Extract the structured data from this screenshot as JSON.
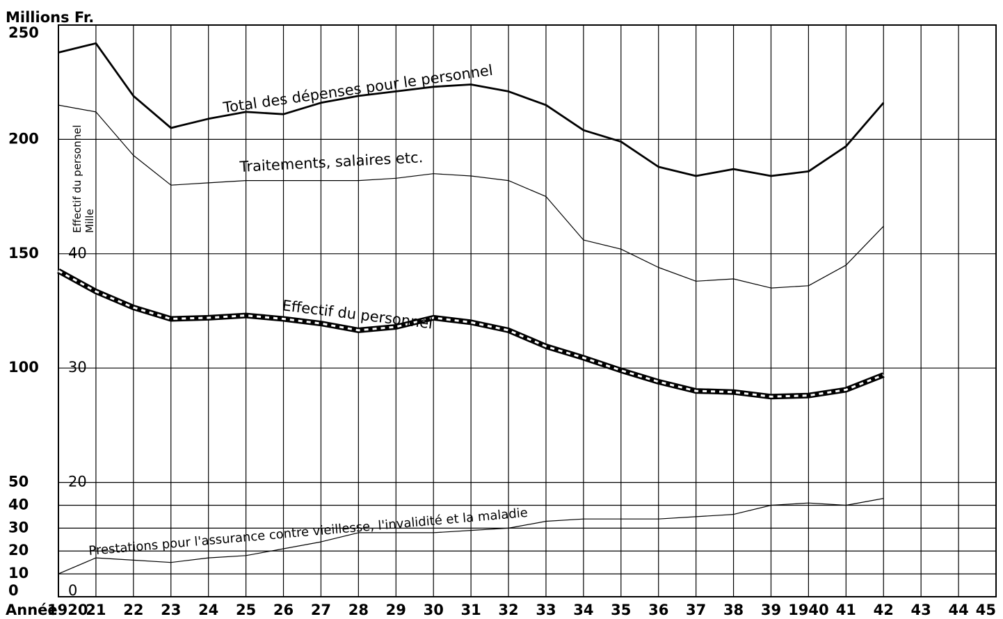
{
  "chart_data": {
    "type": "line",
    "y_unit_label": "Millions Fr.",
    "y2_label_line1": "Effectif du personnel",
    "y2_label_line2": "Mille",
    "x_prefix": "Année",
    "x_tick_labels": [
      "1920",
      "21",
      "22",
      "23",
      "24",
      "25",
      "26",
      "27",
      "28",
      "29",
      "30",
      "31",
      "32",
      "33",
      "34",
      "35",
      "36",
      "37",
      "38",
      "39",
      "1940",
      "41",
      "42",
      "43",
      "44",
      "45"
    ],
    "x": [
      1920,
      1921,
      1922,
      1923,
      1924,
      1925,
      1926,
      1927,
      1928,
      1929,
      1930,
      1931,
      1932,
      1933,
      1934,
      1935,
      1936,
      1937,
      1938,
      1939,
      1940,
      1941,
      1942
    ],
    "xlim": [
      1920,
      1945
    ],
    "ylim": [
      0,
      250
    ],
    "y_ticks": [
      {
        "value": 0,
        "label": "0"
      },
      {
        "value": 10,
        "label": "10"
      },
      {
        "value": 20,
        "label": "20"
      },
      {
        "value": 30,
        "label": "30"
      },
      {
        "value": 40,
        "label": "40"
      },
      {
        "value": 50,
        "label": "50"
      },
      {
        "value": 100,
        "label": "100"
      },
      {
        "value": 150,
        "label": "150"
      },
      {
        "value": 200,
        "label": "200"
      },
      {
        "value": 250,
        "label": "250"
      }
    ],
    "y2_ticks": [
      {
        "value": 0,
        "label": "0"
      },
      {
        "value": 20,
        "label": "20"
      },
      {
        "value": 30,
        "label": "30"
      },
      {
        "value": 40,
        "label": "40"
      }
    ],
    "y2_scale": "y2 value v is plotted at primary value 5*v - 50",
    "series": [
      {
        "name": "Total des dépenses pour le personnel",
        "axis": "left",
        "style": "thick",
        "values": [
          238,
          242,
          219,
          205,
          209,
          212,
          211,
          216,
          219,
          221,
          223,
          224,
          221,
          215,
          204,
          199,
          188,
          184,
          187,
          184,
          186,
          197,
          216
        ]
      },
      {
        "name": "Traitements, salaires etc.",
        "axis": "left",
        "style": "thin",
        "values": [
          215,
          212,
          193,
          180,
          181,
          182,
          182,
          182,
          182,
          183,
          185,
          184,
          182,
          175,
          156,
          152,
          144,
          138,
          139,
          135,
          136,
          145,
          162
        ]
      },
      {
        "name": "Effectif du personnel",
        "axis": "right",
        "style": "dashed-thick",
        "values": [
          38.5,
          36.7,
          35.3,
          34.3,
          34.4,
          34.6,
          34.3,
          33.9,
          33.3,
          33.6,
          34.4,
          34.0,
          33.3,
          31.9,
          30.9,
          29.8,
          28.8,
          28.0,
          27.9,
          27.5,
          27.6,
          28.1,
          29.4
        ]
      },
      {
        "name": "Prestations pour l'assurance contre vieillesse, l'invalidité et la maladie",
        "axis": "left",
        "style": "thin",
        "values": [
          10,
          17,
          16,
          15,
          17,
          18,
          21,
          24,
          28,
          28,
          28,
          29,
          30,
          33,
          34,
          34,
          34,
          35,
          36,
          40,
          41,
          40,
          43
        ]
      }
    ],
    "grid": true,
    "legend": "inline labels along lines"
  }
}
